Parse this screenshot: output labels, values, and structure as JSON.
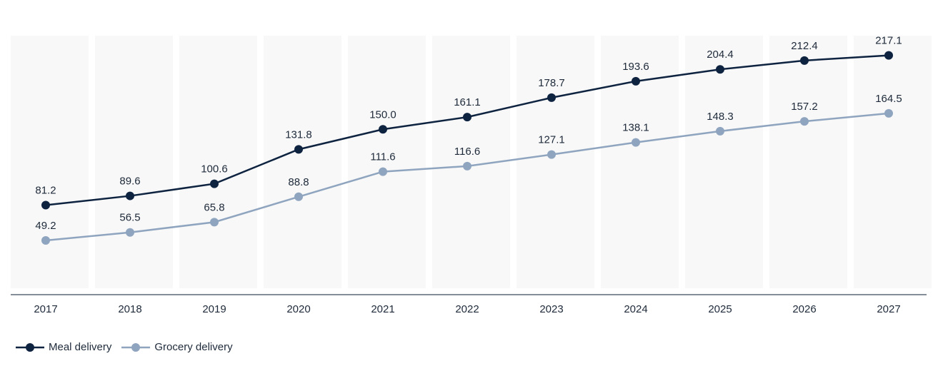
{
  "chart_data": {
    "type": "line",
    "title": "",
    "xlabel": "",
    "ylabel": "",
    "x": [
      "2017",
      "2018",
      "2019",
      "2020",
      "2021",
      "2022",
      "2023",
      "2024",
      "2025",
      "2026",
      "2027"
    ],
    "ylim": [
      0,
      230
    ],
    "grid": false,
    "legend_position": "bottom-left",
    "series": [
      {
        "name": "Meal delivery",
        "color": "#0e2340",
        "values": [
          81.2,
          89.6,
          100.6,
          131.8,
          150.0,
          161.1,
          178.7,
          193.6,
          204.4,
          212.4,
          217.1
        ],
        "labels": [
          "81.2",
          "89.6",
          "100.6",
          "131.8",
          "150.0",
          "161.1",
          "178.7",
          "193.6",
          "204.4",
          "212.4",
          "217.1"
        ]
      },
      {
        "name": "Grocery delivery",
        "color": "#8fa5bf",
        "values": [
          49.2,
          56.5,
          65.8,
          88.8,
          111.6,
          116.6,
          127.1,
          138.1,
          148.3,
          157.2,
          164.5
        ],
        "labels": [
          "49.2",
          "56.5",
          "65.8",
          "88.8",
          "111.6",
          "116.6",
          "127.1",
          "138.1",
          "148.3",
          "157.2",
          "164.5"
        ]
      }
    ]
  }
}
